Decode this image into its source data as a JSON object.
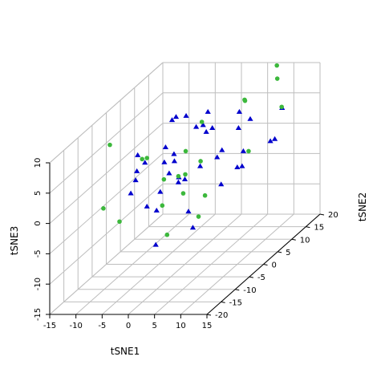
{
  "chart_data": {
    "type": "scatter3d",
    "title": "",
    "xlabel": "tSNE1",
    "ylabel": "tSNE2",
    "zlabel": "tSNE3",
    "x_ticks": [
      "-15",
      "-10",
      "-5",
      "0",
      "5",
      "10",
      "15"
    ],
    "y_ticks": [
      "-20",
      "-15",
      "-10",
      "-5",
      "0",
      "5",
      "10",
      "15",
      "20"
    ],
    "z_ticks": [
      "-15",
      "-10",
      "-5",
      "0",
      "5",
      "10"
    ],
    "xlim": [
      -15,
      15
    ],
    "ylim": [
      -20,
      20
    ],
    "zlim": [
      -15,
      10
    ],
    "grid": true,
    "colors": {
      "triangles": "#0000cd",
      "circles": "#3cb83c"
    },
    "series": [
      {
        "name": "",
        "marker": "triangle",
        "color": "#0000cd",
        "points": [
          [
            -6,
            -3,
            3
          ],
          [
            -4,
            -10,
            3
          ],
          [
            2,
            -6,
            1
          ],
          [
            1,
            -4,
            1
          ],
          [
            -2,
            -5,
            -1
          ],
          [
            5,
            -8,
            -3
          ],
          [
            -3,
            0,
            0
          ],
          [
            -1,
            -2,
            4
          ],
          [
            4,
            -2,
            2
          ],
          [
            8,
            -2,
            -1
          ],
          [
            -8,
            8,
            1
          ],
          [
            -10,
            14,
            3
          ],
          [
            -6,
            8,
            6
          ],
          [
            -3,
            6,
            7
          ],
          [
            0,
            4,
            6
          ],
          [
            3,
            2,
            6
          ],
          [
            -5,
            2,
            1
          ],
          [
            -2,
            0,
            2
          ],
          [
            -7,
            -4,
            2
          ],
          [
            6,
            2,
            3
          ],
          [
            10,
            0,
            1
          ],
          [
            2,
            6,
            5
          ],
          [
            7,
            6,
            5
          ],
          [
            12,
            8,
            2
          ],
          [
            15,
            4,
            4
          ],
          [
            12,
            -2,
            2
          ],
          [
            -9,
            0,
            3
          ],
          [
            -4,
            -6,
            -3
          ],
          [
            8,
            -12,
            -4
          ],
          [
            2,
            -14,
            -6
          ],
          [
            -1,
            10,
            6
          ],
          [
            5,
            10,
            6
          ],
          [
            -6,
            -8,
            0
          ],
          [
            0,
            -10,
            -2
          ],
          [
            4,
            4,
            1
          ],
          [
            9,
            4,
            2
          ],
          [
            -3,
            12,
            3
          ],
          [
            6,
            12,
            4
          ],
          [
            0,
            0,
            -1
          ],
          [
            11,
            14,
            5
          ]
        ]
      },
      {
        "name": "",
        "marker": "circle",
        "color": "#3cb83c",
        "points": [
          [
            -8,
            -14,
            0
          ],
          [
            -6,
            -12,
            -3
          ],
          [
            -10,
            -8,
            8
          ],
          [
            -6,
            -4,
            4
          ],
          [
            -4,
            -6,
            5
          ],
          [
            -1,
            2,
            -1
          ],
          [
            2,
            -6,
            2
          ],
          [
            0,
            -8,
            -2
          ],
          [
            4,
            -8,
            0
          ],
          [
            2,
            -10,
            -6
          ],
          [
            6,
            10,
            8
          ],
          [
            9,
            16,
            9
          ],
          [
            10,
            14,
            12
          ],
          [
            5,
            12,
            7
          ],
          [
            12,
            12,
            6
          ],
          [
            -2,
            4,
            2
          ],
          [
            0,
            6,
            6
          ],
          [
            6,
            -4,
            -2
          ],
          [
            3,
            0,
            2
          ],
          [
            8,
            -10,
            -3
          ],
          [
            -4,
            0,
            -1
          ],
          [
            10,
            4,
            2
          ]
        ]
      }
    ]
  }
}
